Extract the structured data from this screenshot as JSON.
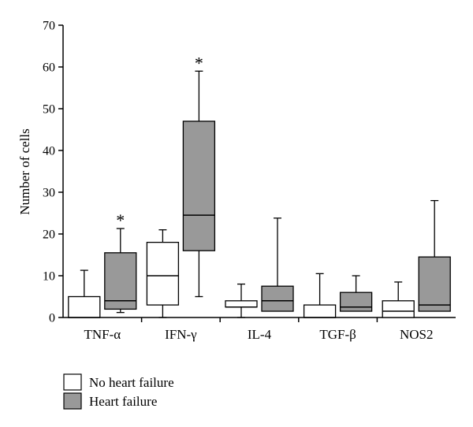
{
  "chart_data": {
    "type": "box",
    "ylabel": "Number of cells",
    "ylim": [
      0,
      70
    ],
    "yticks": [
      "0",
      "10",
      "20",
      "30",
      "40",
      "50",
      "60",
      "70"
    ],
    "categories": [
      "TNF-α",
      "IFN-γ",
      "IL-4",
      "TGF-β",
      "NOS2"
    ],
    "series": [
      {
        "name": "No heart failure",
        "color": "#ffffff",
        "boxes": [
          {
            "min": 0,
            "q1": 0,
            "median": 0,
            "q3": 5,
            "max": 11.3
          },
          {
            "min": 0,
            "q1": 3,
            "median": 10,
            "q3": 18,
            "max": 21
          },
          {
            "min": 0,
            "q1": 2.5,
            "median": 2.5,
            "q3": 4,
            "max": 8
          },
          {
            "min": 0,
            "q1": 0,
            "median": 0,
            "q3": 3,
            "max": 10.5
          },
          {
            "min": 0,
            "q1": 0,
            "median": 1.5,
            "q3": 4,
            "max": 8.5
          }
        ]
      },
      {
        "name": "Heart failure",
        "color": "#999999",
        "boxes": [
          {
            "min": 1.2,
            "q1": 2,
            "median": 4,
            "q3": 15.5,
            "max": 21.3,
            "mark": "*"
          },
          {
            "min": 5,
            "q1": 16,
            "median": 24.5,
            "q3": 47,
            "max": 59,
            "mark": "*"
          },
          {
            "min": 1.5,
            "q1": 1.5,
            "median": 4,
            "q3": 7.5,
            "max": 23.8
          },
          {
            "min": 1.5,
            "q1": 1.5,
            "median": 2.5,
            "q3": 6,
            "max": 10
          },
          {
            "min": 1.5,
            "q1": 1.5,
            "median": 3,
            "q3": 14.5,
            "max": 28
          }
        ]
      }
    ],
    "legend": {
      "placement": "bottom-left"
    }
  }
}
